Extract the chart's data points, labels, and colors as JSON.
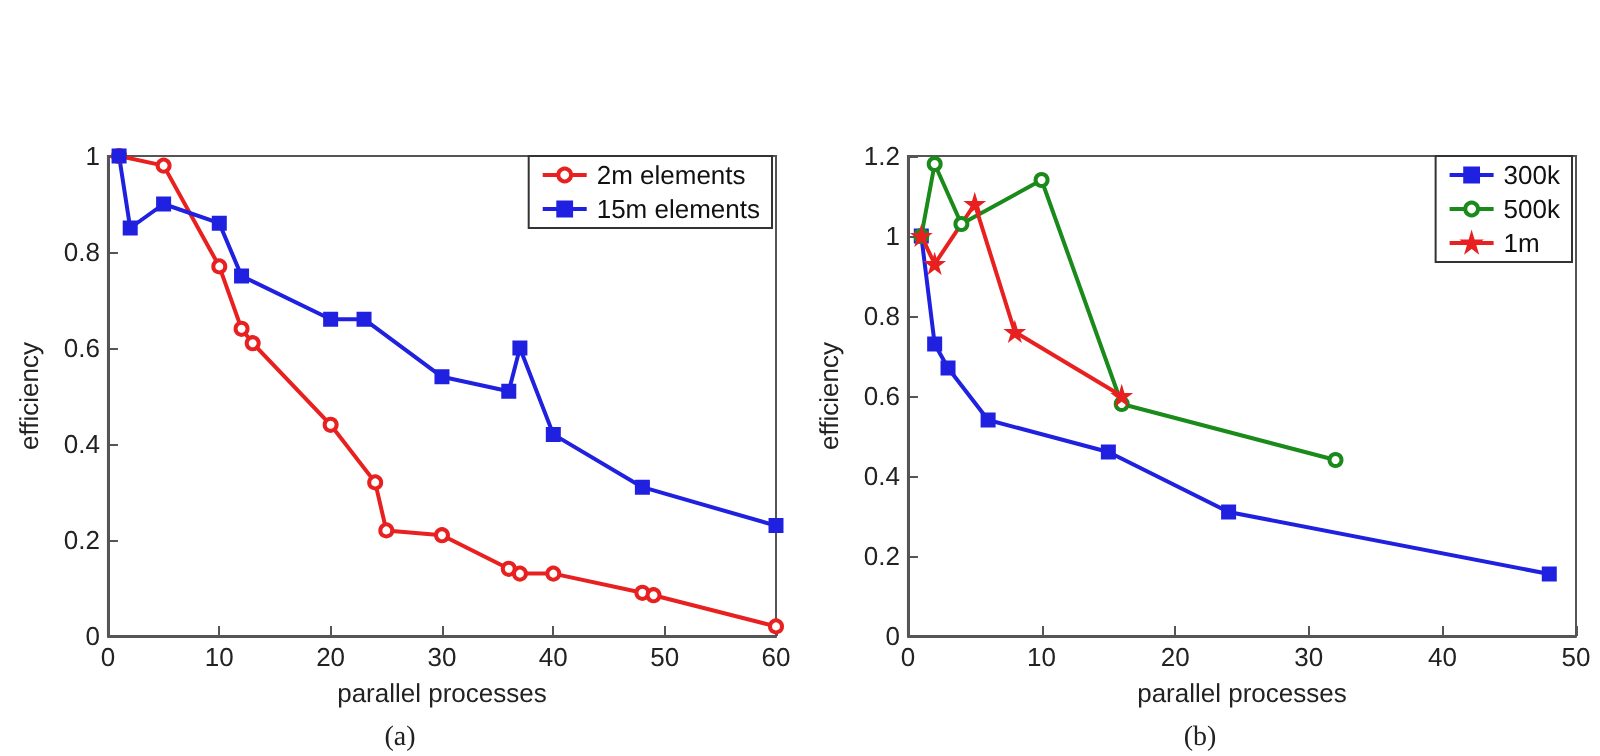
{
  "chart_data": [
    {
      "type": "line",
      "xlabel": "parallel processes",
      "ylabel": "efficiency",
      "annotations": [
        "(a)"
      ],
      "xlim": [
        0,
        60
      ],
      "xticks": [
        0,
        10,
        20,
        30,
        40,
        50,
        60
      ],
      "ylim": [
        0,
        1
      ],
      "yticks": [
        0,
        0.2,
        0.4,
        0.6,
        0.8,
        1
      ],
      "grid": false,
      "legend": "top right",
      "line_style": "solid",
      "series": [
        {
          "name": "2m elements",
          "color": "#e82020",
          "marker": "circle",
          "x": [
            1,
            5,
            10,
            12,
            13,
            20,
            24,
            25,
            30,
            36,
            37,
            40,
            48,
            49,
            60
          ],
          "values": [
            1,
            0.98,
            0.77,
            0.64,
            0.61,
            0.44,
            0.32,
            0.22,
            0.21,
            0.14,
            0.13,
            0.13,
            0.09,
            0.085,
            0.02
          ]
        },
        {
          "name": "15m elements",
          "color": "#2020e0",
          "marker": "square",
          "x": [
            1,
            2,
            5,
            10,
            12,
            20,
            23,
            30,
            36,
            37,
            40,
            48,
            60
          ],
          "values": [
            1,
            0.85,
            0.9,
            0.86,
            0.75,
            0.66,
            0.66,
            0.54,
            0.51,
            0.6,
            0.42,
            0.31,
            0.23
          ]
        }
      ]
    },
    {
      "type": "line",
      "xlabel": "parallel processes",
      "ylabel": "efficiency",
      "annotations": [
        "(b)"
      ],
      "xlim": [
        0,
        50
      ],
      "xticks": [
        0,
        10,
        20,
        30,
        40,
        50
      ],
      "ylim": [
        0,
        1.2
      ],
      "yticks": [
        0,
        0.2,
        0.4,
        0.6,
        0.8,
        1,
        1.2
      ],
      "grid": false,
      "legend": "top right",
      "line_style": "solid",
      "series": [
        {
          "name": "300k",
          "color": "#2020e0",
          "marker": "square",
          "x": [
            1,
            2,
            3,
            6,
            15,
            24,
            48
          ],
          "values": [
            1,
            0.73,
            0.67,
            0.54,
            0.46,
            0.31,
            0.155
          ]
        },
        {
          "name": "500k",
          "color": "#1a8a1a",
          "marker": "circle",
          "x": [
            1,
            2,
            4,
            10,
            16,
            32
          ],
          "values": [
            1,
            1.18,
            1.03,
            1.14,
            0.58,
            0.44
          ]
        },
        {
          "name": "1m",
          "color": "#e82020",
          "marker": "star",
          "x": [
            1,
            2,
            5,
            8,
            16
          ],
          "values": [
            1,
            0.93,
            1.08,
            0.76,
            0.6
          ]
        }
      ]
    }
  ]
}
